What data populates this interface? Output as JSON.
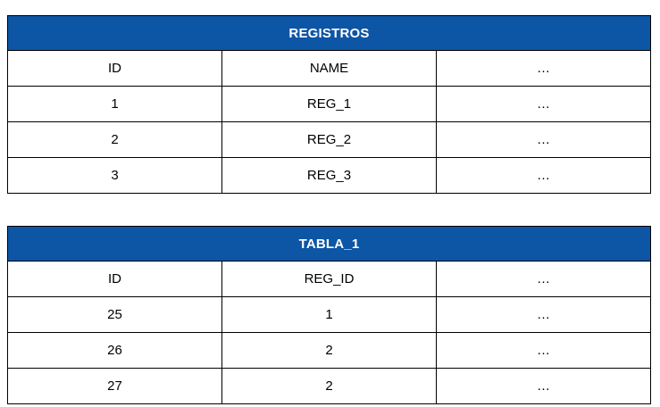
{
  "colors": {
    "header_bg": "#0d55a5",
    "header_text": "#ffffff",
    "cell_text": "#000000",
    "border": "#000000",
    "background": "#ffffff"
  },
  "tables": [
    {
      "title": "REGISTROS",
      "columns": [
        "ID",
        "NAME",
        "…"
      ],
      "rows": [
        [
          "1",
          "REG_1",
          "…"
        ],
        [
          "2",
          "REG_2",
          "…"
        ],
        [
          "3",
          "REG_3",
          "…"
        ]
      ]
    },
    {
      "title": "TABLA_1",
      "columns": [
        "ID",
        "REG_ID",
        "…"
      ],
      "rows": [
        [
          "25",
          "1",
          "…"
        ],
        [
          "26",
          "2",
          "…"
        ],
        [
          "27",
          "2",
          "…"
        ]
      ]
    }
  ]
}
